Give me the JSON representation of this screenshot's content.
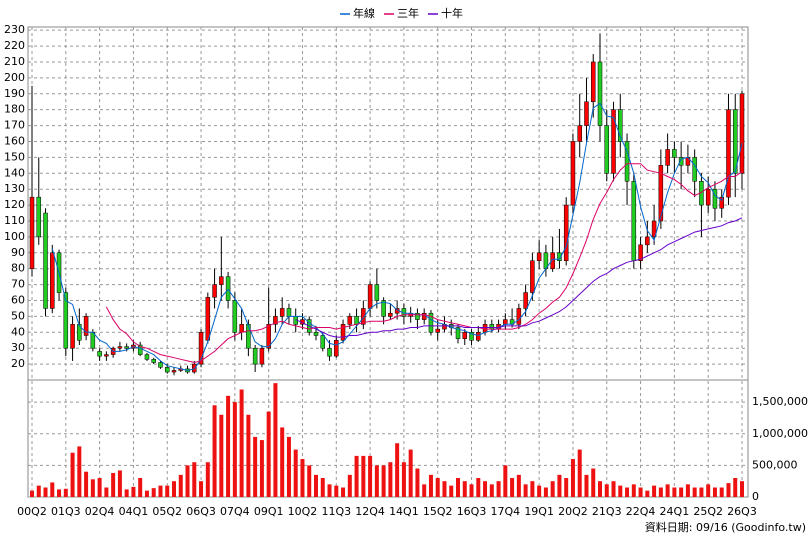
{
  "chart_data": {
    "type": "candlestick",
    "categories": [
      "00Q2",
      null,
      null,
      null,
      null,
      "01Q3",
      null,
      null,
      null,
      null,
      "02Q4",
      null,
      null,
      null,
      null,
      "04Q1",
      null,
      null,
      null,
      null,
      "05Q2",
      null,
      null,
      null,
      null,
      "06Q3",
      null,
      null,
      null,
      null,
      "07Q4",
      null,
      null,
      null,
      null,
      "09Q1",
      null,
      null,
      null,
      null,
      "10Q2",
      null,
      null,
      null,
      null,
      "11Q3",
      null,
      null,
      null,
      null,
      "12Q4",
      null,
      null,
      null,
      null,
      "14Q1",
      null,
      null,
      null,
      null,
      "15Q2",
      null,
      null,
      null,
      null,
      "16Q3",
      null,
      null,
      null,
      null,
      "17Q4",
      null,
      null,
      null,
      null,
      "19Q1",
      null,
      null,
      null,
      null,
      "20Q2",
      null,
      null,
      null,
      null,
      "21Q3",
      null,
      null,
      null,
      null,
      "22Q4",
      null,
      null,
      null,
      null,
      "24Q1",
      null,
      null,
      null,
      null,
      "25Q2",
      null,
      null,
      null,
      null,
      "26Q3"
    ],
    "open": [
      80,
      125,
      115,
      55,
      90,
      65,
      30,
      45,
      38,
      40,
      28,
      25,
      26,
      30,
      31,
      30,
      32,
      26,
      23,
      21,
      18,
      15,
      16,
      17,
      15,
      20,
      35,
      62,
      70,
      75,
      60,
      40,
      45,
      30,
      20,
      30,
      45,
      50,
      55,
      50,
      45,
      48,
      40,
      38,
      30,
      25,
      35,
      45,
      50,
      45,
      55,
      70,
      60,
      50,
      52,
      55,
      50,
      52,
      48,
      52,
      40,
      42,
      45,
      43,
      36,
      40,
      35,
      40,
      45,
      42,
      45,
      48,
      45,
      55,
      65,
      85,
      90,
      80,
      90,
      85,
      120,
      160,
      170,
      185,
      210,
      170,
      140,
      180,
      160,
      135,
      85,
      95,
      100,
      110,
      145,
      155,
      150,
      145,
      150,
      135,
      120,
      130,
      118,
      125,
      180,
      140
    ],
    "high": [
      195,
      150,
      118,
      95,
      92,
      68,
      50,
      55,
      52,
      42,
      30,
      28,
      31,
      34,
      33,
      35,
      34,
      27,
      24,
      22,
      20,
      18,
      19,
      19,
      22,
      42,
      65,
      80,
      100,
      78,
      65,
      55,
      48,
      32,
      32,
      68,
      55,
      62,
      58,
      55,
      52,
      50,
      44,
      40,
      35,
      38,
      48,
      52,
      55,
      60,
      72,
      80,
      62,
      58,
      60,
      58,
      56,
      55,
      55,
      54,
      48,
      50,
      48,
      45,
      42,
      42,
      44,
      48,
      48,
      48,
      52,
      55,
      58,
      70,
      90,
      98,
      95,
      100,
      105,
      125,
      165,
      190,
      200,
      215,
      228,
      180,
      185,
      190,
      165,
      140,
      100,
      110,
      120,
      155,
      165,
      160,
      160,
      158,
      155,
      140,
      138,
      135,
      130,
      190,
      190,
      192
    ],
    "low": [
      75,
      95,
      50,
      52,
      60,
      25,
      22,
      32,
      35,
      28,
      22,
      22,
      24,
      28,
      28,
      28,
      25,
      22,
      20,
      17,
      14,
      13,
      15,
      14,
      14,
      18,
      33,
      55,
      60,
      55,
      35,
      35,
      25,
      15,
      18,
      28,
      40,
      45,
      45,
      40,
      42,
      38,
      35,
      28,
      22,
      24,
      33,
      42,
      40,
      42,
      50,
      55,
      45,
      48,
      48,
      45,
      46,
      42,
      45,
      38,
      35,
      40,
      38,
      33,
      32,
      32,
      34,
      38,
      40,
      40,
      42,
      43,
      42,
      50,
      60,
      80,
      75,
      78,
      80,
      82,
      115,
      150,
      160,
      175,
      160,
      135,
      135,
      150,
      120,
      80,
      80,
      90,
      95,
      105,
      140,
      140,
      130,
      140,
      125,
      100,
      115,
      110,
      112,
      120,
      125,
      130
    ],
    "close": [
      125,
      100,
      55,
      90,
      65,
      30,
      45,
      35,
      50,
      30,
      25,
      26,
      30,
      31,
      30,
      32,
      26,
      23,
      21,
      18,
      15,
      16,
      17,
      15,
      20,
      40,
      62,
      70,
      75,
      60,
      40,
      45,
      30,
      20,
      30,
      45,
      50,
      55,
      50,
      45,
      48,
      40,
      38,
      30,
      25,
      35,
      45,
      50,
      45,
      55,
      70,
      60,
      50,
      52,
      55,
      50,
      52,
      48,
      52,
      40,
      42,
      45,
      43,
      36,
      40,
      35,
      40,
      45,
      42,
      45,
      48,
      45,
      55,
      65,
      85,
      90,
      80,
      90,
      85,
      120,
      160,
      170,
      185,
      210,
      170,
      140,
      180,
      160,
      135,
      85,
      95,
      100,
      110,
      145,
      155,
      150,
      145,
      150,
      135,
      120,
      130,
      118,
      125,
      180,
      140,
      190
    ],
    "volume": [
      100000,
      180000,
      150000,
      230000,
      120000,
      130000,
      700000,
      800000,
      400000,
      280000,
      300000,
      150000,
      380000,
      420000,
      120000,
      160000,
      300000,
      100000,
      140000,
      180000,
      180000,
      250000,
      350000,
      500000,
      550000,
      250000,
      550000,
      1450000,
      1300000,
      1600000,
      1500000,
      1700000,
      1300000,
      950000,
      900000,
      1350000,
      1800000,
      1100000,
      950000,
      750000,
      600000,
      500000,
      350000,
      300000,
      200000,
      180000,
      150000,
      350000,
      650000,
      650000,
      650000,
      500000,
      500000,
      550000,
      850000,
      550000,
      750000,
      450000,
      200000,
      350000,
      300000,
      250000,
      180000,
      300000,
      250000,
      200000,
      300000,
      250000,
      200000,
      250000,
      500000,
      300000,
      350000,
      200000,
      250000,
      180000,
      150000,
      250000,
      350000,
      300000,
      600000,
      750000,
      350000,
      450000,
      250000,
      200000,
      250000,
      180000,
      150000,
      200000,
      150000,
      100000,
      180000,
      150000,
      200000,
      150000,
      150000,
      200000,
      150000,
      150000,
      200000,
      150000,
      150000,
      220000,
      300000,
      250000
    ],
    "series": [
      {
        "name": "年線",
        "color": "#0066cc",
        "values": [
          null,
          null,
          null,
          92.5,
          77.5,
          60,
          57.5,
          44,
          40,
          40,
          35,
          33,
          28,
          28,
          29,
          31,
          30,
          28,
          26,
          22,
          19,
          18,
          17,
          16,
          17,
          23,
          34,
          48,
          62,
          67,
          61,
          55,
          44,
          34,
          31,
          31,
          36,
          45,
          50,
          50,
          50,
          46,
          43,
          39,
          33,
          32,
          34,
          39,
          44,
          49,
          55,
          58,
          59,
          58,
          54,
          52,
          52,
          51,
          51,
          48,
          46,
          45,
          43,
          42,
          41,
          39,
          38,
          40,
          41,
          43,
          45,
          45,
          48,
          53,
          63,
          74,
          80,
          86,
          86,
          94,
          114,
          134,
          159,
          181,
          184,
          176,
          175,
          163,
          154,
          140,
          119,
          104,
          98,
          113,
          128,
          140,
          149,
          150,
          145,
          138,
          134,
          126,
          123,
          138,
          141,
          159
        ]
      },
      {
        "name": "三年",
        "color": "#dd0066",
        "values": [
          null,
          null,
          null,
          null,
          null,
          null,
          null,
          null,
          null,
          null,
          null,
          56,
          48,
          42,
          39,
          34,
          31,
          30,
          28,
          26,
          25,
          24,
          23,
          22,
          21,
          22,
          25,
          28,
          32,
          36,
          38,
          40,
          41,
          41,
          42,
          44,
          46,
          47,
          45,
          44,
          43,
          42,
          43,
          43,
          43,
          42,
          43,
          44,
          45,
          46,
          47,
          47,
          47,
          48,
          50,
          51,
          51,
          51,
          51,
          50,
          48,
          47,
          46,
          45,
          44,
          43,
          43,
          42,
          42,
          42,
          42,
          42,
          43,
          45,
          48,
          52,
          55,
          59,
          62,
          68,
          77,
          87,
          98,
          111,
          121,
          128,
          136,
          142,
          146,
          146,
          146,
          142,
          141,
          140,
          138,
          136,
          133,
          129,
          126,
          128,
          131,
          133,
          135,
          138,
          138,
          141
        ]
      },
      {
        "name": "十年",
        "color": "#6600cc",
        "values": [
          null,
          null,
          null,
          null,
          null,
          null,
          null,
          null,
          null,
          null,
          null,
          null,
          null,
          null,
          null,
          null,
          null,
          null,
          null,
          null,
          null,
          null,
          null,
          null,
          null,
          null,
          null,
          null,
          null,
          null,
          null,
          null,
          null,
          null,
          null,
          null,
          null,
          null,
          null,
          48,
          46,
          44,
          42,
          40,
          38,
          37,
          37,
          38,
          38,
          39,
          40,
          40,
          41,
          41,
          42,
          42,
          43,
          43,
          44,
          44,
          44,
          44,
          44,
          44,
          43,
          43,
          43,
          43,
          43,
          43,
          44,
          44,
          44,
          44,
          46,
          47,
          49,
          51,
          53,
          56,
          60,
          64,
          68,
          72,
          75,
          77,
          80,
          82,
          84,
          85,
          86,
          88,
          90,
          92,
          95,
          97,
          99,
          101,
          103,
          104,
          105,
          106,
          107,
          109,
          110,
          112
        ]
      }
    ],
    "up_color": "#ff0000",
    "down_color": "#22cc22",
    "volume_color": "#ee1111",
    "ylim": [
      10,
      232
    ],
    "yticks": [
      20,
      30,
      40,
      50,
      60,
      70,
      80,
      90,
      100,
      110,
      120,
      130,
      140,
      150,
      160,
      170,
      180,
      190,
      200,
      210,
      220,
      230
    ],
    "y2lim": [
      0,
      1850000
    ],
    "y2ticks": [
      0,
      {
        "value": 500000,
        "label": "500,000"
      },
      {
        "value": 1000000,
        "label": "1,000,000"
      },
      {
        "value": 1500000,
        "label": "1,500,000"
      }
    ],
    "grid": true,
    "note": "資料日期: 09/16 (Goodinfo.tw)"
  }
}
